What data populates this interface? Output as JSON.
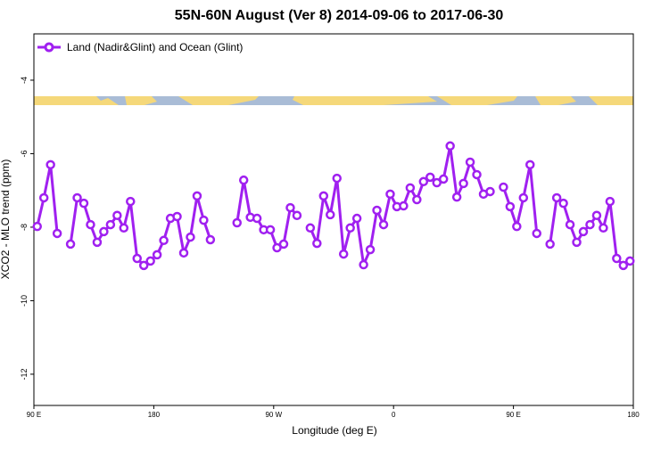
{
  "chart_data": {
    "type": "line",
    "title": "55N-60N August (Ver 8)   2014-09-06 to 2017-06-30",
    "x_label": "Longitude (deg E)",
    "y_label": "XCO2 - MLO trend (ppm)",
    "legend_position": "upper left",
    "x": [
      92.5,
      97.5,
      102.5,
      107.5,
      112.5,
      117.5,
      122.5,
      127.5,
      132.5,
      137.5,
      142.5,
      147.5,
      152.5,
      157.5,
      162.5,
      167.5,
      172.5,
      177.5,
      182.5,
      187.5,
      192.5,
      197.5,
      202.5,
      207.5,
      212.5,
      217.5,
      222.5,
      227.5,
      232.5,
      237.5,
      242.5,
      247.5,
      252.5,
      257.5,
      262.5,
      267.5,
      272.5,
      277.5,
      282.5,
      287.5,
      292.5,
      297.5,
      302.5,
      307.5,
      312.5,
      317.5,
      322.5,
      327.5,
      332.5,
      337.5,
      342.5,
      347.5,
      352.5,
      357.5,
      362.5,
      367.5,
      372.5,
      377.5,
      382.5,
      387.5,
      392.5,
      397.5,
      402.5,
      407.5,
      412.5,
      417.5,
      422.5,
      427.5,
      432.5,
      437.5,
      442.5,
      447.5,
      452.5,
      457.5,
      462.5,
      467.5,
      472.5,
      477.5,
      482.5,
      487.5,
      492.5,
      497.5,
      502.5,
      507.5,
      512.5,
      517.5,
      522.5,
      527.5,
      532.5,
      537.5
    ],
    "series": [
      {
        "name": "Land (Nadir&Glint) and Ocean (Glint)",
        "color": "#a020f0",
        "values": [
          -7.98,
          -7.2,
          -6.3,
          -8.17,
          null,
          -8.46,
          -7.2,
          -7.35,
          -7.93,
          -8.41,
          -8.12,
          -7.93,
          -7.68,
          -8.02,
          -7.3,
          -8.85,
          -9.04,
          -8.92,
          -8.75,
          -8.36,
          -7.76,
          -7.71,
          -8.7,
          -8.27,
          -7.15,
          -7.81,
          -8.34,
          null,
          null,
          null,
          -7.88,
          -6.72,
          -7.73,
          -7.76,
          -8.07,
          -8.07,
          -8.56,
          -8.46,
          -7.47,
          -7.68,
          null,
          -8.02,
          -8.44,
          -7.15,
          -7.66,
          -6.67,
          -8.73,
          -8.02,
          -7.76,
          -9.02,
          -8.61,
          -7.54,
          -7.93,
          -7.1,
          -7.44,
          -7.42,
          -6.93,
          -7.25,
          -6.76,
          -6.64,
          -6.79,
          -6.69,
          -5.79,
          -7.18,
          -6.81,
          -6.23,
          -6.57,
          -7.1,
          -7.03,
          null,
          -6.91,
          -7.44,
          -7.98,
          -7.2,
          -6.3,
          -8.17,
          null,
          -8.46,
          -7.2,
          -7.35,
          -7.93,
          -8.41,
          -8.12,
          -7.93,
          -7.68,
          -8.02,
          -7.3,
          -8.85,
          -9.04,
          -8.92
        ]
      }
    ],
    "xlim": [
      90,
      540
    ],
    "xticks": [
      {
        "value": 90,
        "label": "90 E"
      },
      180,
      {
        "value": 270,
        "label": "90 W"
      },
      {
        "value": 360,
        "label": "0"
      },
      {
        "value": 450,
        "label": "90 E"
      },
      {
        "value": 540,
        "label": "180"
      }
    ],
    "ylim": [
      -12.85,
      -2.74
    ],
    "yticks": [
      -4,
      -6,
      -8,
      -10,
      -12
    ]
  }
}
